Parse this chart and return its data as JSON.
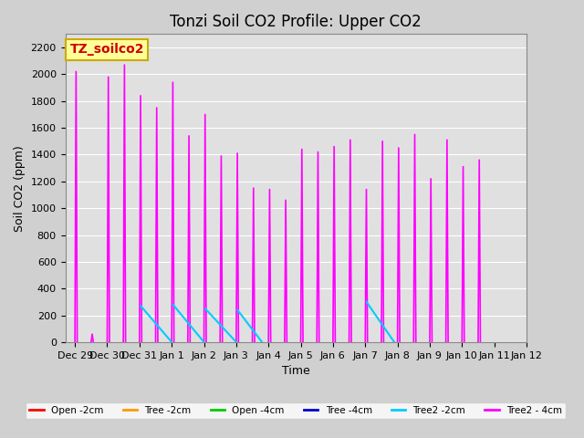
{
  "title": "Tonzi Soil CO2 Profile: Upper CO2",
  "xlabel": "Time",
  "ylabel": "Soil CO2 (ppm)",
  "ylim": [
    0,
    2300
  ],
  "yticks": [
    0,
    200,
    400,
    600,
    800,
    1000,
    1200,
    1400,
    1600,
    1800,
    2000,
    2200
  ],
  "xtick_positions": [
    0,
    1,
    2,
    3,
    4,
    5,
    6,
    7,
    8,
    9,
    10,
    11,
    12,
    13
  ],
  "xtick_labels": [
    "Dec 29",
    "Dec 30",
    "Dec 31",
    "Jan 1",
    "Jan 2",
    "Jan 3",
    "Jan 4",
    "Jan 5",
    "Jan 6",
    "Jan 7",
    "Jan 8",
    "Jan 9",
    "Jan 10",
    "Jan 11"
  ],
  "xlim": [
    -0.3,
    13.3
  ],
  "title_fontsize": 12,
  "axis_label_fontsize": 9,
  "tick_fontsize": 8,
  "background_color": "#e0e0e0",
  "grid_color": "#ffffff",
  "legend_box_color": "#ffff99",
  "legend_box_edge": "#ccaa00",
  "legend_text_color": "#cc0000",
  "legend_label": "TZ_soilco2",
  "spikes_4cm": [
    [
      0.0,
      2020
    ],
    [
      0.5,
      60
    ],
    [
      1.0,
      1980
    ],
    [
      1.5,
      2070
    ],
    [
      2.0,
      1840
    ],
    [
      2.5,
      1750
    ],
    [
      3.0,
      1940
    ],
    [
      3.5,
      1540
    ],
    [
      4.0,
      1700
    ],
    [
      4.5,
      1390
    ],
    [
      5.0,
      1410
    ],
    [
      5.5,
      1150
    ],
    [
      6.0,
      1140
    ],
    [
      6.5,
      1060
    ],
    [
      7.0,
      1440
    ],
    [
      7.5,
      1420
    ],
    [
      8.0,
      1460
    ],
    [
      8.5,
      1510
    ],
    [
      9.0,
      1140
    ],
    [
      9.5,
      1500
    ],
    [
      10.0,
      1450
    ],
    [
      10.5,
      1550
    ],
    [
      11.0,
      1220
    ],
    [
      11.5,
      1510
    ],
    [
      12.0,
      1310
    ],
    [
      12.5,
      1360
    ]
  ],
  "cyan_segments": [
    {
      "x": [
        2.04,
        3.0
      ],
      "y": [
        270,
        0
      ]
    },
    {
      "x": [
        3.04,
        4.0
      ],
      "y": [
        280,
        0
      ]
    },
    {
      "x": [
        4.04,
        5.0
      ],
      "y": [
        250,
        0
      ]
    },
    {
      "x": [
        5.04,
        5.8
      ],
      "y": [
        240,
        0
      ]
    },
    {
      "x": [
        9.04,
        9.9
      ],
      "y": [
        300,
        0
      ]
    }
  ],
  "series_colors": [
    "#ff0000",
    "#ff9900",
    "#00cc00",
    "#0000cc",
    "#00ccff",
    "#ff00ff"
  ],
  "series_labels": [
    "Open -2cm",
    "Tree -2cm",
    "Open -4cm",
    "Tree -4cm",
    "Tree2 -2cm",
    "Tree2 - 4cm"
  ]
}
